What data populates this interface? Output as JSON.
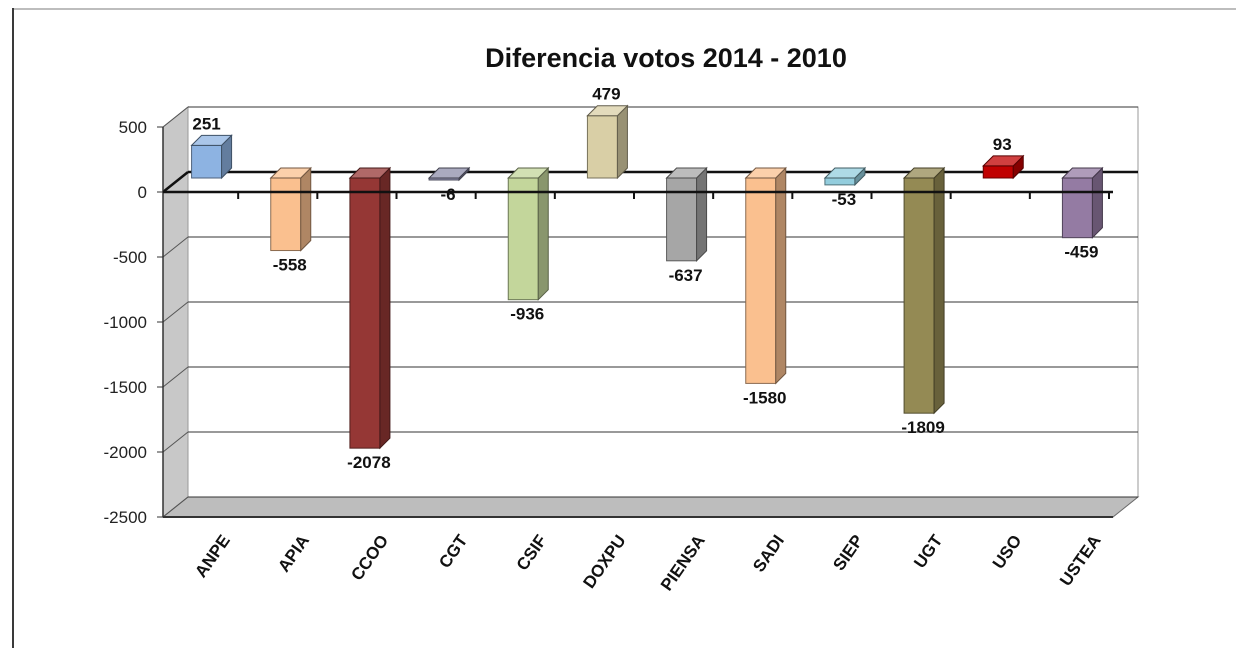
{
  "chart_data": {
    "type": "bar",
    "title": "Diferencia votos 2014 - 2010",
    "categories": [
      "ANPE",
      "APIA",
      "CCOO",
      "CGT",
      "CSIF",
      "DOXPU",
      "PIENSA",
      "SADI",
      "SIEP",
      "UGT",
      "USO",
      "USTEA"
    ],
    "values": [
      251,
      -558,
      -2078,
      -6,
      -936,
      479,
      -637,
      -1580,
      -53,
      -1809,
      93,
      -459
    ],
    "data_labels": [
      "251",
      "-558",
      "-2078",
      "-6",
      "-936",
      "479",
      "-637",
      "-1580",
      "-53",
      "-1809",
      "93",
      "-459"
    ],
    "colors": [
      "#8db3e2",
      "#fac08f",
      "#953735",
      "#8e8eaa",
      "#c3d69b",
      "#d9cfa6",
      "#a6a6a6",
      "#fac08f",
      "#93cddd",
      "#948a54",
      "#c00000",
      "#947ba3"
    ],
    "ylim": [
      -2500,
      500
    ],
    "yticks": [
      "500",
      "0",
      "-500",
      "-1000",
      "-1500",
      "-2000",
      "-2500"
    ],
    "ytick_values": [
      500,
      0,
      -500,
      -1000,
      -1500,
      -2000,
      -2500
    ],
    "xlabel": "",
    "ylabel": "",
    "grid": true,
    "legend": "none",
    "style": "3d"
  }
}
